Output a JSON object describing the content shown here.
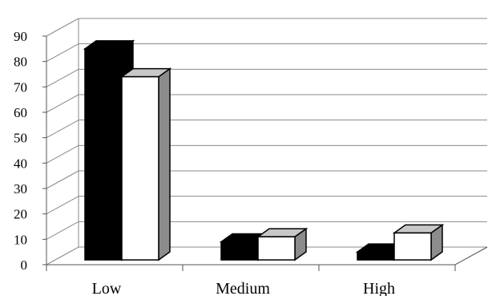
{
  "chart_data": {
    "type": "bar",
    "style": "3d-clustered-column",
    "categories": [
      "Low",
      "Medium",
      "High"
    ],
    "series": [
      {
        "values": [
          85,
          9,
          5
        ],
        "color": "#000000"
      },
      {
        "values": [
          74,
          11,
          12.5
        ],
        "color": "#ffffff"
      }
    ],
    "ylim": [
      0,
      90
    ],
    "yticks": [
      0,
      10,
      20,
      30,
      40,
      50,
      60,
      70,
      80,
      90
    ],
    "grid": true,
    "legend": "none",
    "title": "",
    "xlabel": "",
    "ylabel": ""
  }
}
